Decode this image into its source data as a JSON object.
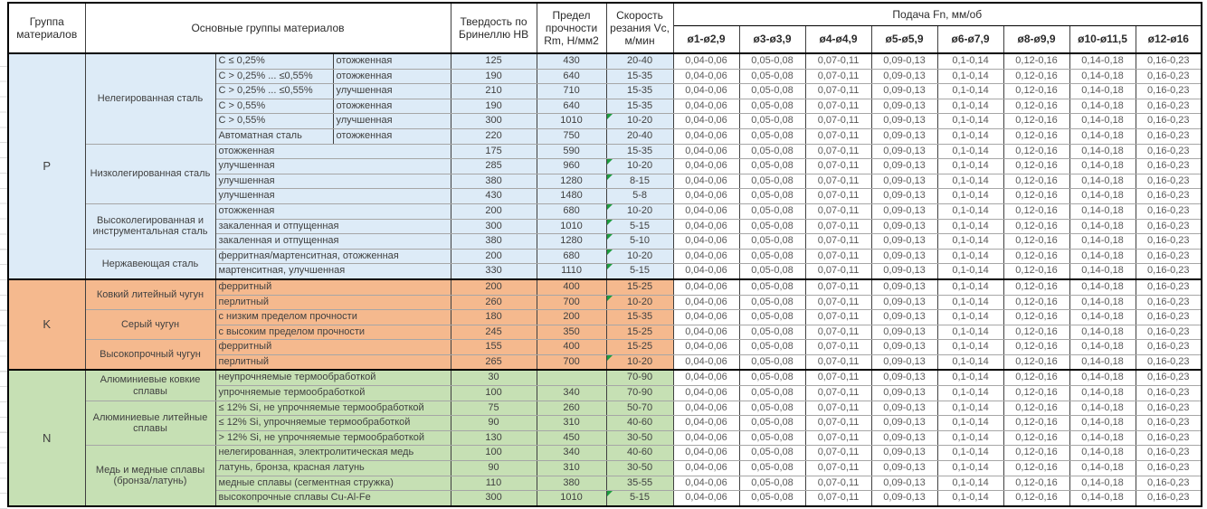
{
  "header": {
    "col_group": "Группа материалов",
    "col_materials": "Основные группы материалов",
    "col_hardness": "Твердость по Бринеллю HB",
    "col_strength": "Предел прочности Rm, Н/мм2",
    "col_speed": "Скорость резания Vc, м/мин",
    "feed_title": "Подача Fn, мм/об",
    "feed_cols": [
      "ø1-ø2,9",
      "ø3-ø3,9",
      "ø4-ø4,9",
      "ø5-ø5,9",
      "ø6-ø7,9",
      "ø8-ø9,9",
      "ø10-ø11,5",
      "ø12-ø16"
    ]
  },
  "feed_values": [
    "0,04-0,06",
    "0,05-0,08",
    "0,07-0,11",
    "0,09-0,13",
    "0,1-0,14",
    "0,12-0,16",
    "0,14-0,18",
    "0,16-0,23"
  ],
  "colors": {
    "p": "#DDEBF7",
    "k": "#F5B98E",
    "n": "#C6E0B4",
    "marker": "#1E9C3F"
  },
  "groups": [
    {
      "code": "P",
      "color": "#DDEBF7",
      "families": [
        {
          "name": "Нелегированная сталь",
          "rows": [
            {
              "sub1": "C ≤ 0,25%",
              "sub2": "отожженная",
              "hb": "125",
              "rm": "430",
              "vc": "20-40",
              "marker": false
            },
            {
              "sub1": "C > 0,25% ... ≤0,55%",
              "sub2": "отожженная",
              "hb": "190",
              "rm": "640",
              "vc": "15-35",
              "marker": false
            },
            {
              "sub1": "C > 0,25% ... ≤0,55%",
              "sub2": "улучшенная",
              "hb": "210",
              "rm": "710",
              "vc": "15-35",
              "marker": false
            },
            {
              "sub1": "C > 0,55%",
              "sub2": "отожженная",
              "hb": "190",
              "rm": "640",
              "vc": "15-35",
              "marker": false
            },
            {
              "sub1": "C > 0,55%",
              "sub2": "улучшенная",
              "hb": "300",
              "rm": "1010",
              "vc": "10-20",
              "marker": true
            },
            {
              "sub1": "Автоматная сталь",
              "sub2": "отожженная",
              "hb": "220",
              "rm": "750",
              "vc": "20-40",
              "marker": false
            }
          ]
        },
        {
          "name": "Низколегированная сталь",
          "rows": [
            {
              "detail": "отожженная",
              "hb": "175",
              "rm": "590",
              "vc": "15-35",
              "marker": false
            },
            {
              "detail": "улучшенная",
              "hb": "285",
              "rm": "960",
              "vc": "10-20",
              "marker": true
            },
            {
              "detail": "улучшенная",
              "hb": "380",
              "rm": "1280",
              "vc": "8-15",
              "marker": true
            },
            {
              "detail": "улучшенная",
              "hb": "430",
              "rm": "1480",
              "vc": "5-8",
              "marker": false
            }
          ]
        },
        {
          "name": "Высоколегированная и инструментальная сталь",
          "rows": [
            {
              "detail": "отожженная",
              "hb": "200",
              "rm": "680",
              "vc": "10-20",
              "marker": true
            },
            {
              "detail": "закаленная и отпущенная",
              "hb": "300",
              "rm": "1010",
              "vc": "5-15",
              "marker": true
            },
            {
              "detail": "закаленная и отпущенная",
              "hb": "380",
              "rm": "1280",
              "vc": "5-10",
              "marker": true
            }
          ]
        },
        {
          "name": "Нержавеющая сталь",
          "rows": [
            {
              "detail": "ферритная/мартенситная, отожженная",
              "hb": "200",
              "rm": "680",
              "vc": "10-20",
              "marker": true
            },
            {
              "detail": "мартенситная, улучшенная",
              "hb": "330",
              "rm": "1110",
              "vc": "5-15",
              "marker": true
            }
          ]
        }
      ]
    },
    {
      "code": "K",
      "color": "#F5B98E",
      "families": [
        {
          "name": "Ковкий литейный чугун",
          "rows": [
            {
              "detail": "ферритный",
              "hb": "200",
              "rm": "400",
              "vc": "15-25",
              "marker": false
            },
            {
              "detail": "перлитный",
              "hb": "260",
              "rm": "700",
              "vc": "10-20",
              "marker": true
            }
          ]
        },
        {
          "name": "Серый чугун",
          "rows": [
            {
              "detail": "с низким пределом прочности",
              "hb": "180",
              "rm": "200",
              "vc": "15-35",
              "marker": false
            },
            {
              "detail": "с высоким пределом прочности",
              "hb": "245",
              "rm": "350",
              "vc": "15-25",
              "marker": false
            }
          ]
        },
        {
          "name": "Высокопрочный чугун",
          "rows": [
            {
              "detail": "ферритный",
              "hb": "155",
              "rm": "400",
              "vc": "15-25",
              "marker": false
            },
            {
              "detail": "перлитный",
              "hb": "265",
              "rm": "700",
              "vc": "10-20",
              "marker": true
            }
          ]
        }
      ]
    },
    {
      "code": "N",
      "color": "#C6E0B4",
      "families": [
        {
          "name": "Алюминиевые ковкие сплавы",
          "rows": [
            {
              "detail": "неупрочняемые термообработкой",
              "hb": "30",
              "rm": "",
              "vc": "70-90",
              "marker": false
            },
            {
              "detail": "упрочняемые термообработкой",
              "hb": "100",
              "rm": "340",
              "vc": "70-90",
              "marker": false
            }
          ]
        },
        {
          "name": "Алюминиевые литейные сплавы",
          "rows": [
            {
              "detail": "≤ 12% Si, не упрочняемые термообработкой",
              "hb": "75",
              "rm": "260",
              "vc": "50-70",
              "marker": false
            },
            {
              "detail": "≤ 12% Si, упрочняемые термообработкой",
              "hb": "90",
              "rm": "310",
              "vc": "40-60",
              "marker": false
            },
            {
              "detail": "> 12% Si, не упрочняемые термообработкой",
              "hb": "130",
              "rm": "450",
              "vc": "30-50",
              "marker": false
            }
          ]
        },
        {
          "name": "Медь и медные сплавы (бронза/латунь)",
          "rows": [
            {
              "detail": "нелегированная, электролитическая медь",
              "hb": "100",
              "rm": "340",
              "vc": "40-60",
              "marker": false
            },
            {
              "detail": "латунь, бронза, красная латунь",
              "hb": "90",
              "rm": "310",
              "vc": "30-50",
              "marker": false
            },
            {
              "detail": "медные сплавы (сегментная стружка)",
              "hb": "110",
              "rm": "380",
              "vc": "35-55",
              "marker": false
            },
            {
              "detail": "высокопрочные сплавы Cu-Al-Fe",
              "hb": "300",
              "rm": "1010",
              "vc": "5-15",
              "marker": true
            }
          ]
        }
      ]
    }
  ]
}
